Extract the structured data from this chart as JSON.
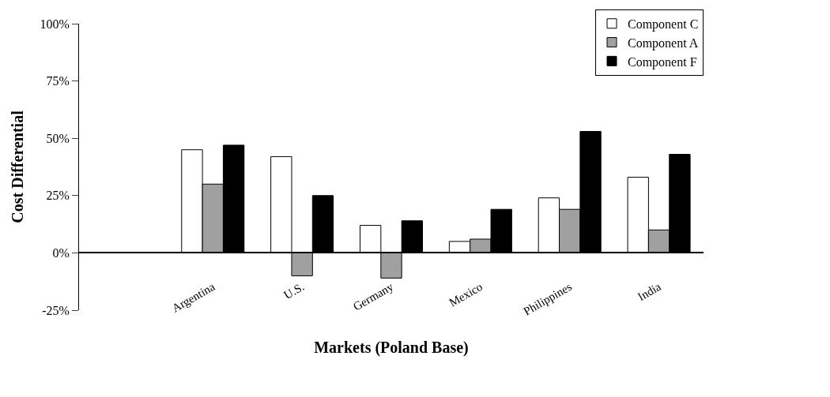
{
  "chart_data": {
    "type": "bar",
    "xlabel": "Markets (Poland Base)",
    "ylabel": "Cost Differential",
    "categories": [
      null,
      "Argentina",
      "U.S.",
      "Germany",
      "Mexico",
      "Philippines",
      "India"
    ],
    "series": [
      {
        "name": "Component C",
        "color": "#ffffff",
        "values": [
          null,
          45,
          42,
          12,
          5,
          24,
          33
        ]
      },
      {
        "name": "Component A",
        "color": "#a0a0a0",
        "values": [
          null,
          30,
          -10,
          -11,
          6,
          19,
          10
        ]
      },
      {
        "name": "Component F",
        "color": "#000000",
        "values": [
          null,
          47,
          25,
          14,
          19,
          53,
          43
        ]
      }
    ],
    "ylim": [
      -25,
      100
    ],
    "yticks": [
      {
        "value": -25,
        "label": "-25%"
      },
      {
        "value": 0,
        "label": "0%"
      },
      {
        "value": 25,
        "label": "25%"
      },
      {
        "value": 50,
        "label": "50%"
      },
      {
        "value": 75,
        "label": "75%"
      },
      {
        "value": 100,
        "label": "100%"
      }
    ],
    "legend": "top right"
  }
}
